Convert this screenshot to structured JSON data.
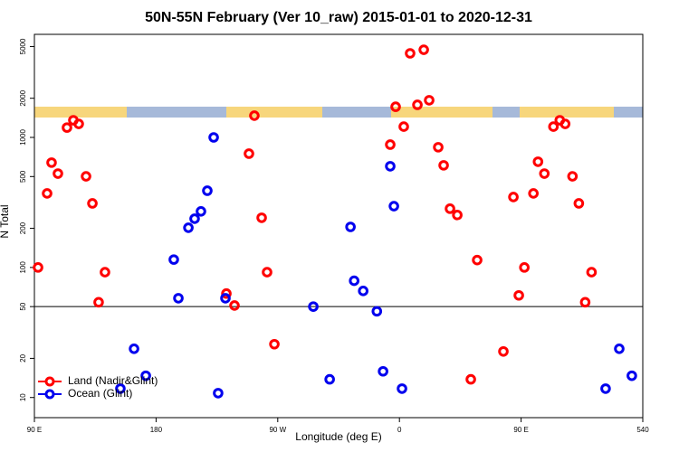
{
  "chart_data": {
    "type": "scatter",
    "title": "50N-55N February (Ver 10_raw)   2015-01-01 to 2020-12-31",
    "x_label": "Longitude (deg E)",
    "y_label": "N Total",
    "xlim": [
      90,
      540
    ],
    "ylim": [
      7,
      6200
    ],
    "ylog": true,
    "xticks": [
      {
        "value": 90,
        "label": "90 E"
      },
      180,
      {
        "value": 270,
        "label": "90 W"
      },
      {
        "value": 360,
        "label": "0"
      },
      {
        "value": 450,
        "label": "90 E"
      },
      540
    ],
    "yticks": [
      10,
      20,
      50,
      100,
      200,
      500,
      1000,
      2000,
      5000
    ],
    "reference_line": 50,
    "legend": "bottom-left",
    "series": [
      {
        "name": "Land (Nadir&Glint)",
        "color": "#ff0000",
        "x": [
          92.7,
          99.4,
          102.7,
          107.4,
          114.1,
          118.8,
          122.8,
          128.2,
          132.9,
          137.5,
          142.2,
          232,
          238,
          248.7,
          252.7,
          258.1,
          262.1,
          267.5,
          353.2,
          357.2,
          363.2,
          367.9,
          373.3,
          378,
          382,
          388.7,
          392.7,
          397.4,
          402.8,
          417.5,
          412.8,
          436.9,
          444.3,
          448.3,
          452.4,
          459.1,
          462.5,
          467.2,
          473.9,
          478.6,
          482.6,
          488,
          492.7,
          497.4,
          502.1
        ],
        "values": [
          100,
          371,
          640,
          527,
          1190,
          1355,
          1270,
          502,
          311,
          54,
          92,
          63,
          51,
          750,
          1470,
          241,
          92,
          25.7,
          880,
          1720,
          1210,
          4430,
          1780,
          4720,
          1930,
          840,
          610,
          283,
          253,
          114,
          13.8,
          22.6,
          348,
          61,
          100,
          371,
          650,
          527,
          1210,
          1355,
          1270,
          502,
          311,
          54,
          92
        ]
      },
      {
        "name": "Ocean (Glint)",
        "color": "#0000ee",
        "x": [
          153.6,
          163.7,
          172.4,
          193.1,
          196.5,
          203.9,
          208.5,
          213.2,
          217.9,
          222.6,
          225.9,
          231.3,
          296.3,
          308.4,
          323.8,
          326.5,
          333.2,
          343.3,
          347.9,
          353.2,
          355.9,
          361.9,
          512.5,
          522.6,
          531.9
        ],
        "values": [
          11.7,
          23.7,
          14.7,
          115,
          58,
          202,
          237,
          270,
          389,
          1000,
          10.8,
          58,
          50,
          13.8,
          205,
          79,
          66,
          46,
          15.9,
          600,
          296,
          11.7,
          11.7,
          23.7,
          14.7
        ]
      }
    ]
  }
}
